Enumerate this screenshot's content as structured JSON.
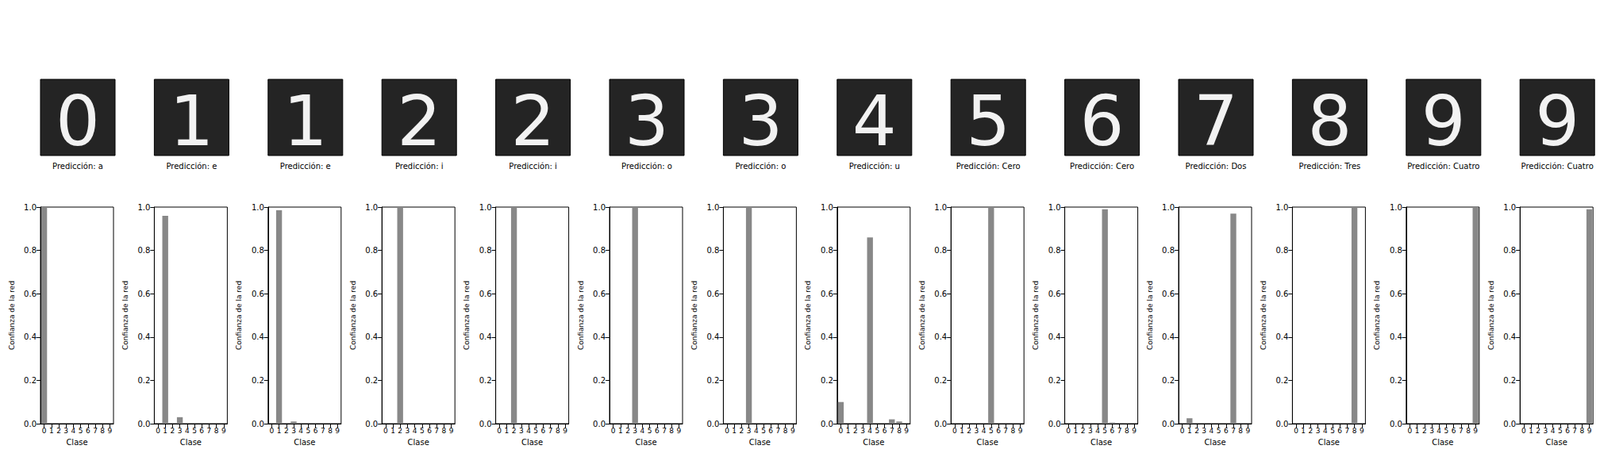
{
  "chart_data": [
    {
      "type": "bar",
      "image": "0",
      "caption": "Predicción: a",
      "categories": [
        "0",
        "1",
        "2",
        "3",
        "4",
        "5",
        "6",
        "7",
        "8",
        "9"
      ],
      "values": [
        1.0,
        0,
        0,
        0,
        0,
        0,
        0,
        0,
        0,
        0
      ],
      "color": "#888888",
      "xlabel": "Clase",
      "ylabel": "Confianza de la red",
      "ylim": [
        0,
        1
      ],
      "yticks": [
        {
          "value": 0,
          "label": "0.0"
        },
        {
          "value": 0.2,
          "label": "0.2"
        },
        {
          "value": 0.4,
          "label": "0.4"
        },
        {
          "value": 0.6,
          "label": "0.6"
        },
        {
          "value": 0.8,
          "label": "0.8"
        },
        {
          "value": 1,
          "label": "1.0"
        }
      ]
    },
    {
      "type": "bar",
      "image": "1",
      "caption": "Predicción: e",
      "categories": [
        "0",
        "1",
        "2",
        "3",
        "4",
        "5",
        "6",
        "7",
        "8",
        "9"
      ],
      "values": [
        0,
        0.96,
        0,
        0.03,
        0,
        0,
        0,
        0,
        0,
        0
      ],
      "color": "#888888",
      "xlabel": "Clase",
      "ylabel": "Confianza de la red",
      "ylim": [
        0,
        1
      ],
      "yticks": [
        {
          "value": 0,
          "label": "0.0"
        },
        {
          "value": 0.2,
          "label": "0.2"
        },
        {
          "value": 0.4,
          "label": "0.4"
        },
        {
          "value": 0.6,
          "label": "0.6"
        },
        {
          "value": 0.8,
          "label": "0.8"
        },
        {
          "value": 1,
          "label": "1.0"
        }
      ]
    },
    {
      "type": "bar",
      "image": "1",
      "caption": "Predicción: e",
      "categories": [
        "0",
        "1",
        "2",
        "3",
        "4",
        "5",
        "6",
        "7",
        "8",
        "9"
      ],
      "values": [
        0,
        0.985,
        0,
        0.01,
        0,
        0,
        0,
        0,
        0,
        0
      ],
      "color": "#888888",
      "xlabel": "Clase",
      "ylabel": "Confianza de la red",
      "ylim": [
        0,
        1
      ],
      "yticks": [
        {
          "value": 0,
          "label": "0.0"
        },
        {
          "value": 0.2,
          "label": "0.2"
        },
        {
          "value": 0.4,
          "label": "0.4"
        },
        {
          "value": 0.6,
          "label": "0.6"
        },
        {
          "value": 0.8,
          "label": "0.8"
        },
        {
          "value": 1,
          "label": "1.0"
        }
      ]
    },
    {
      "type": "bar",
      "image": "2",
      "caption": "Predicción: i",
      "categories": [
        "0",
        "1",
        "2",
        "3",
        "4",
        "5",
        "6",
        "7",
        "8",
        "9"
      ],
      "values": [
        0,
        0,
        1.0,
        0,
        0,
        0,
        0,
        0,
        0,
        0
      ],
      "color": "#888888",
      "xlabel": "Clase",
      "ylabel": "Confianza de la red",
      "ylim": [
        0,
        1
      ],
      "yticks": [
        {
          "value": 0,
          "label": "0.0"
        },
        {
          "value": 0.2,
          "label": "0.2"
        },
        {
          "value": 0.4,
          "label": "0.4"
        },
        {
          "value": 0.6,
          "label": "0.6"
        },
        {
          "value": 0.8,
          "label": "0.8"
        },
        {
          "value": 1,
          "label": "1.0"
        }
      ]
    },
    {
      "type": "bar",
      "image": "2",
      "caption": "Predicción: i",
      "categories": [
        "0",
        "1",
        "2",
        "3",
        "4",
        "5",
        "6",
        "7",
        "8",
        "9"
      ],
      "values": [
        0,
        0,
        1.0,
        0,
        0,
        0,
        0,
        0,
        0,
        0
      ],
      "color": "#888888",
      "xlabel": "Clase",
      "ylabel": "Confianza de la red",
      "ylim": [
        0,
        1
      ],
      "yticks": [
        {
          "value": 0,
          "label": "0.0"
        },
        {
          "value": 0.2,
          "label": "0.2"
        },
        {
          "value": 0.4,
          "label": "0.4"
        },
        {
          "value": 0.6,
          "label": "0.6"
        },
        {
          "value": 0.8,
          "label": "0.8"
        },
        {
          "value": 1,
          "label": "1.0"
        }
      ]
    },
    {
      "type": "bar",
      "image": "3",
      "caption": "Predicción: o",
      "categories": [
        "0",
        "1",
        "2",
        "3",
        "4",
        "5",
        "6",
        "7",
        "8",
        "9"
      ],
      "values": [
        0,
        0,
        0,
        1.0,
        0,
        0,
        0,
        0,
        0,
        0
      ],
      "color": "#888888",
      "xlabel": "Clase",
      "ylabel": "Confianza de la red",
      "ylim": [
        0,
        1
      ],
      "yticks": [
        {
          "value": 0,
          "label": "0.0"
        },
        {
          "value": 0.2,
          "label": "0.2"
        },
        {
          "value": 0.4,
          "label": "0.4"
        },
        {
          "value": 0.6,
          "label": "0.6"
        },
        {
          "value": 0.8,
          "label": "0.8"
        },
        {
          "value": 1,
          "label": "1.0"
        }
      ]
    },
    {
      "type": "bar",
      "image": "3",
      "caption": "Predicción: o",
      "categories": [
        "0",
        "1",
        "2",
        "3",
        "4",
        "5",
        "6",
        "7",
        "8",
        "9"
      ],
      "values": [
        0,
        0,
        0,
        1.0,
        0,
        0,
        0,
        0,
        0,
        0
      ],
      "color": "#888888",
      "xlabel": "Clase",
      "ylabel": "Confianza de la red",
      "ylim": [
        0,
        1
      ],
      "yticks": [
        {
          "value": 0,
          "label": "0.0"
        },
        {
          "value": 0.2,
          "label": "0.2"
        },
        {
          "value": 0.4,
          "label": "0.4"
        },
        {
          "value": 0.6,
          "label": "0.6"
        },
        {
          "value": 0.8,
          "label": "0.8"
        },
        {
          "value": 1,
          "label": "1.0"
        }
      ]
    },
    {
      "type": "bar",
      "image": "4",
      "caption": "Predicción: u",
      "categories": [
        "0",
        "1",
        "2",
        "3",
        "4",
        "5",
        "6",
        "7",
        "8",
        "9"
      ],
      "values": [
        0.1,
        0,
        0,
        0,
        0.86,
        0,
        0,
        0.02,
        0.01,
        0
      ],
      "color": "#888888",
      "xlabel": "Clase",
      "ylabel": "Confianza de la red",
      "ylim": [
        0,
        1
      ],
      "yticks": [
        {
          "value": 0,
          "label": "0.0"
        },
        {
          "value": 0.2,
          "label": "0.2"
        },
        {
          "value": 0.4,
          "label": "0.4"
        },
        {
          "value": 0.6,
          "label": "0.6"
        },
        {
          "value": 0.8,
          "label": "0.8"
        },
        {
          "value": 1,
          "label": "1.0"
        }
      ]
    },
    {
      "type": "bar",
      "image": "5",
      "caption": "Predicción: Cero",
      "categories": [
        "0",
        "1",
        "2",
        "3",
        "4",
        "5",
        "6",
        "7",
        "8",
        "9"
      ],
      "values": [
        0,
        0,
        0,
        0,
        0,
        1.0,
        0,
        0,
        0,
        0
      ],
      "color": "#888888",
      "xlabel": "Clase",
      "ylabel": "Confianza de la red",
      "ylim": [
        0,
        1
      ],
      "yticks": [
        {
          "value": 0,
          "label": "0.0"
        },
        {
          "value": 0.2,
          "label": "0.2"
        },
        {
          "value": 0.4,
          "label": "0.4"
        },
        {
          "value": 0.6,
          "label": "0.6"
        },
        {
          "value": 0.8,
          "label": "0.8"
        },
        {
          "value": 1,
          "label": "1.0"
        }
      ]
    },
    {
      "type": "bar",
      "image": "6",
      "caption": "Predicción: Cero",
      "categories": [
        "0",
        "1",
        "2",
        "3",
        "4",
        "5",
        "6",
        "7",
        "8",
        "9"
      ],
      "values": [
        0,
        0,
        0,
        0,
        0,
        0.99,
        0.005,
        0,
        0.003,
        0
      ],
      "color": "#888888",
      "xlabel": "Clase",
      "ylabel": "Confianza de la red",
      "ylim": [
        0,
        1
      ],
      "yticks": [
        {
          "value": 0,
          "label": "0.0"
        },
        {
          "value": 0.2,
          "label": "0.2"
        },
        {
          "value": 0.4,
          "label": "0.4"
        },
        {
          "value": 0.6,
          "label": "0.6"
        },
        {
          "value": 0.8,
          "label": "0.8"
        },
        {
          "value": 1,
          "label": "1.0"
        }
      ]
    },
    {
      "type": "bar",
      "image": "7",
      "caption": "Predicción: Dos",
      "categories": [
        "0",
        "1",
        "2",
        "3",
        "4",
        "5",
        "6",
        "7",
        "8",
        "9"
      ],
      "values": [
        0,
        0.025,
        0,
        0,
        0,
        0,
        0,
        0.97,
        0,
        0
      ],
      "color": "#888888",
      "xlabel": "Clase",
      "ylabel": "Confianza de la red",
      "ylim": [
        0,
        1
      ],
      "yticks": [
        {
          "value": 0,
          "label": "0.0"
        },
        {
          "value": 0.2,
          "label": "0.2"
        },
        {
          "value": 0.4,
          "label": "0.4"
        },
        {
          "value": 0.6,
          "label": "0.6"
        },
        {
          "value": 0.8,
          "label": "0.8"
        },
        {
          "value": 1,
          "label": "1.0"
        }
      ]
    },
    {
      "type": "bar",
      "image": "8",
      "caption": "Predicción: Tres",
      "categories": [
        "0",
        "1",
        "2",
        "3",
        "4",
        "5",
        "6",
        "7",
        "8",
        "9"
      ],
      "values": [
        0,
        0,
        0,
        0,
        0,
        0,
        0,
        0,
        1.0,
        0
      ],
      "color": "#888888",
      "xlabel": "Clase",
      "ylabel": "Confianza de la red",
      "ylim": [
        0,
        1
      ],
      "yticks": [
        {
          "value": 0,
          "label": "0.0"
        },
        {
          "value": 0.2,
          "label": "0.2"
        },
        {
          "value": 0.4,
          "label": "0.4"
        },
        {
          "value": 0.6,
          "label": "0.6"
        },
        {
          "value": 0.8,
          "label": "0.8"
        },
        {
          "value": 1,
          "label": "1.0"
        }
      ]
    },
    {
      "type": "bar",
      "image": "9",
      "caption": "Predicción: Cuatro",
      "categories": [
        "0",
        "1",
        "2",
        "3",
        "4",
        "5",
        "6",
        "7",
        "8",
        "9"
      ],
      "values": [
        0,
        0,
        0,
        0,
        0,
        0,
        0,
        0,
        0,
        1.0
      ],
      "color": "#888888",
      "xlabel": "Clase",
      "ylabel": "Confianza de la red",
      "ylim": [
        0,
        1
      ],
      "yticks": [
        {
          "value": 0,
          "label": "0.0"
        },
        {
          "value": 0.2,
          "label": "0.2"
        },
        {
          "value": 0.4,
          "label": "0.4"
        },
        {
          "value": 0.6,
          "label": "0.6"
        },
        {
          "value": 0.8,
          "label": "0.8"
        },
        {
          "value": 1,
          "label": "1.0"
        }
      ]
    },
    {
      "type": "bar",
      "image": "9",
      "caption": "Predicción: Cuatro",
      "categories": [
        "0",
        "1",
        "2",
        "3",
        "4",
        "5",
        "6",
        "7",
        "8",
        "9"
      ],
      "values": [
        0,
        0,
        0,
        0,
        0,
        0,
        0,
        0,
        0,
        0.99
      ],
      "color": "#888888",
      "xlabel": "Clase",
      "ylabel": "Confianza de la red",
      "ylim": [
        0,
        1
      ],
      "yticks": [
        {
          "value": 0,
          "label": "0.0"
        },
        {
          "value": 0.2,
          "label": "0.2"
        },
        {
          "value": 0.4,
          "label": "0.4"
        },
        {
          "value": 0.6,
          "label": "0.6"
        },
        {
          "value": 0.8,
          "label": "0.8"
        },
        {
          "value": 1,
          "label": "1.0"
        }
      ]
    }
  ]
}
